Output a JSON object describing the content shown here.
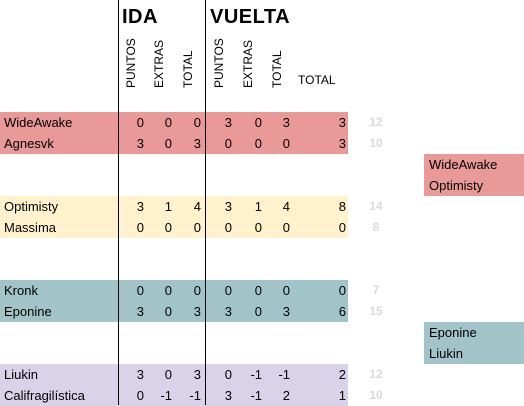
{
  "headers": {
    "ida": "IDA",
    "vuelta": "VUELTA",
    "puntos": "PUNTOS",
    "extras": "EXTRAS",
    "total": "TOTAL",
    "grand_total": "TOTAL"
  },
  "colors": {
    "red": "#ea9999",
    "yellow": "#fff2cc",
    "teal": "#a2c4c9",
    "purple": "#d9d2e9",
    "dim": "#dadada"
  },
  "groups": [
    {
      "color": "#ea9999",
      "rows": [
        {
          "name": "WideAwake",
          "ida": [
            "0",
            "0",
            "0"
          ],
          "vuelta": [
            "3",
            "0",
            "3"
          ],
          "total": "3",
          "side": "12"
        },
        {
          "name": "Agnesvk",
          "ida": [
            "3",
            "0",
            "3"
          ],
          "vuelta": [
            "0",
            "0",
            "0"
          ],
          "total": "3",
          "side": "10"
        }
      ]
    },
    {
      "color": "#fff2cc",
      "rows": [
        {
          "name": "Optimisty",
          "ida": [
            "3",
            "1",
            "4"
          ],
          "vuelta": [
            "3",
            "1",
            "4"
          ],
          "total": "8",
          "side": "14"
        },
        {
          "name": "Massima",
          "ida": [
            "0",
            "0",
            "0"
          ],
          "vuelta": [
            "0",
            "0",
            "0"
          ],
          "total": "0",
          "side": "8"
        }
      ]
    },
    {
      "color": "#a2c4c9",
      "rows": [
        {
          "name": "Kronk",
          "ida": [
            "0",
            "0",
            "0"
          ],
          "vuelta": [
            "0",
            "0",
            "0"
          ],
          "total": "0",
          "side": "7"
        },
        {
          "name": "Eponine",
          "ida": [
            "3",
            "0",
            "3"
          ],
          "vuelta": [
            "3",
            "0",
            "3"
          ],
          "total": "6",
          "side": "15"
        }
      ]
    },
    {
      "color": "#d9d2e9",
      "rows": [
        {
          "name": "Liukin",
          "ida": [
            "3",
            "0",
            "3"
          ],
          "vuelta": [
            "0",
            "-1",
            "-1"
          ],
          "total": "2",
          "side": "12"
        },
        {
          "name": "Califragilística",
          "ida": [
            "0",
            "-1",
            "-1"
          ],
          "vuelta": [
            "3",
            "-1",
            "2"
          ],
          "total": "1",
          "side": "10"
        }
      ]
    }
  ],
  "winners": [
    {
      "color": "#ea9999",
      "names": [
        "WideAwake",
        "Optimisty"
      ]
    },
    {
      "color": "#a2c4c9",
      "names": [
        "Eponine",
        "Liukin"
      ]
    }
  ]
}
